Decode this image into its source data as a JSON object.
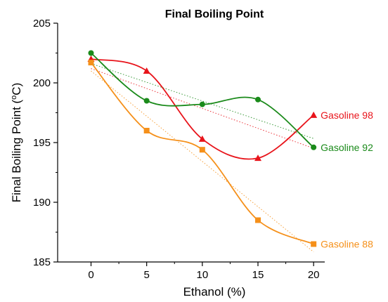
{
  "chart_data": {
    "type": "line",
    "title": "Final Boiling Point",
    "xlabel": "Ethanol (%)",
    "ylabel_prefix": "Final Boiling Point (",
    "ylabel_sup": "o",
    "ylabel_suffix": "C)",
    "x": [
      0,
      5,
      10,
      15,
      20
    ],
    "xlim": [
      -3,
      21
    ],
    "ylim": [
      185,
      205
    ],
    "xticks": [
      0,
      5,
      10,
      15,
      20
    ],
    "yticks": [
      185,
      190,
      195,
      200,
      205
    ],
    "grid": false,
    "legend": "none (series labelled at line ends)",
    "trendlines": "dotted linear fit per series",
    "series": [
      {
        "name": "Gasoline 98",
        "color": "#e8141b",
        "marker": "triangle",
        "values": [
          202.0,
          201.0,
          195.3,
          193.7,
          197.3
        ]
      },
      {
        "name": "Gasoline 92",
        "color": "#1a8a1a",
        "marker": "circle",
        "values": [
          202.5,
          198.5,
          198.2,
          198.6,
          194.6
        ]
      },
      {
        "name": "Gasoline 88",
        "color": "#f5901a",
        "marker": "square",
        "values": [
          201.7,
          196.0,
          194.4,
          188.5,
          186.5
        ]
      }
    ]
  }
}
